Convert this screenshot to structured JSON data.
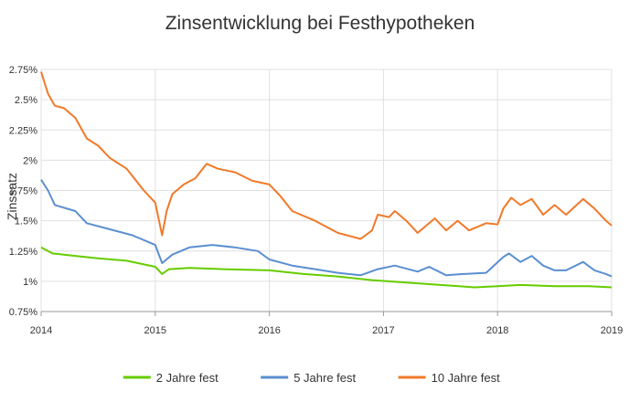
{
  "chart_data": {
    "type": "line",
    "title": "Zinsentwicklung bei Festhypotheken",
    "xlabel": "",
    "ylabel": "Zinssatz",
    "xlim": [
      2014,
      2019
    ],
    "ylim": [
      0.75,
      2.75
    ],
    "x_ticks": [
      "2014",
      "2015",
      "2016",
      "2017",
      "2018",
      "2019"
    ],
    "y_ticks": [
      "0.75%",
      "1%",
      "1.25%",
      "1.5%",
      "1.75%",
      "2%",
      "2.25%",
      "2.5%",
      "2.75%"
    ],
    "grid": true,
    "legend_position": "bottom",
    "series": [
      {
        "name": "2 Jahre fest",
        "color": "#66cc00",
        "points": [
          [
            2014.0,
            1.28
          ],
          [
            2014.1,
            1.23
          ],
          [
            2014.3,
            1.21
          ],
          [
            2014.5,
            1.19
          ],
          [
            2014.75,
            1.17
          ],
          [
            2015.0,
            1.12
          ],
          [
            2015.06,
            1.06
          ],
          [
            2015.12,
            1.1
          ],
          [
            2015.3,
            1.11
          ],
          [
            2015.6,
            1.1
          ],
          [
            2016.0,
            1.09
          ],
          [
            2016.3,
            1.06
          ],
          [
            2016.6,
            1.04
          ],
          [
            2016.9,
            1.01
          ],
          [
            2017.2,
            0.99
          ],
          [
            2017.5,
            0.97
          ],
          [
            2017.8,
            0.95
          ],
          [
            2018.0,
            0.96
          ],
          [
            2018.2,
            0.97
          ],
          [
            2018.5,
            0.96
          ],
          [
            2018.8,
            0.96
          ],
          [
            2019.0,
            0.95
          ]
        ]
      },
      {
        "name": "5 Jahre fest",
        "color": "#5b8fd0",
        "points": [
          [
            2014.0,
            1.84
          ],
          [
            2014.06,
            1.75
          ],
          [
            2014.12,
            1.63
          ],
          [
            2014.3,
            1.58
          ],
          [
            2014.4,
            1.48
          ],
          [
            2014.6,
            1.43
          ],
          [
            2014.8,
            1.38
          ],
          [
            2015.0,
            1.3
          ],
          [
            2015.06,
            1.15
          ],
          [
            2015.15,
            1.22
          ],
          [
            2015.3,
            1.28
          ],
          [
            2015.5,
            1.3
          ],
          [
            2015.7,
            1.28
          ],
          [
            2015.9,
            1.25
          ],
          [
            2016.0,
            1.18
          ],
          [
            2016.2,
            1.13
          ],
          [
            2016.4,
            1.1
          ],
          [
            2016.6,
            1.07
          ],
          [
            2016.8,
            1.05
          ],
          [
            2016.95,
            1.1
          ],
          [
            2017.1,
            1.13
          ],
          [
            2017.3,
            1.08
          ],
          [
            2017.4,
            1.12
          ],
          [
            2017.55,
            1.05
          ],
          [
            2017.7,
            1.06
          ],
          [
            2017.9,
            1.07
          ],
          [
            2018.05,
            1.2
          ],
          [
            2018.1,
            1.23
          ],
          [
            2018.2,
            1.16
          ],
          [
            2018.3,
            1.21
          ],
          [
            2018.4,
            1.13
          ],
          [
            2018.5,
            1.09
          ],
          [
            2018.6,
            1.09
          ],
          [
            2018.75,
            1.16
          ],
          [
            2018.85,
            1.09
          ],
          [
            2018.95,
            1.06
          ],
          [
            2019.0,
            1.04
          ]
        ]
      },
      {
        "name": "10 Jahre fest",
        "color": "#f07a2a",
        "points": [
          [
            2014.0,
            2.73
          ],
          [
            2014.06,
            2.55
          ],
          [
            2014.12,
            2.45
          ],
          [
            2014.2,
            2.43
          ],
          [
            2014.3,
            2.35
          ],
          [
            2014.4,
            2.18
          ],
          [
            2014.5,
            2.12
          ],
          [
            2014.6,
            2.02
          ],
          [
            2014.75,
            1.93
          ],
          [
            2014.9,
            1.75
          ],
          [
            2015.0,
            1.65
          ],
          [
            2015.06,
            1.38
          ],
          [
            2015.1,
            1.58
          ],
          [
            2015.15,
            1.72
          ],
          [
            2015.25,
            1.8
          ],
          [
            2015.35,
            1.85
          ],
          [
            2015.45,
            1.97
          ],
          [
            2015.55,
            1.93
          ],
          [
            2015.7,
            1.9
          ],
          [
            2015.85,
            1.83
          ],
          [
            2016.0,
            1.8
          ],
          [
            2016.1,
            1.7
          ],
          [
            2016.2,
            1.58
          ],
          [
            2016.4,
            1.5
          ],
          [
            2016.6,
            1.4
          ],
          [
            2016.8,
            1.35
          ],
          [
            2016.9,
            1.42
          ],
          [
            2016.95,
            1.55
          ],
          [
            2017.05,
            1.53
          ],
          [
            2017.1,
            1.58
          ],
          [
            2017.2,
            1.5
          ],
          [
            2017.3,
            1.4
          ],
          [
            2017.45,
            1.52
          ],
          [
            2017.55,
            1.42
          ],
          [
            2017.65,
            1.5
          ],
          [
            2017.75,
            1.42
          ],
          [
            2017.9,
            1.48
          ],
          [
            2018.0,
            1.47
          ],
          [
            2018.05,
            1.6
          ],
          [
            2018.12,
            1.69
          ],
          [
            2018.2,
            1.63
          ],
          [
            2018.3,
            1.68
          ],
          [
            2018.4,
            1.55
          ],
          [
            2018.5,
            1.63
          ],
          [
            2018.6,
            1.55
          ],
          [
            2018.75,
            1.68
          ],
          [
            2018.85,
            1.6
          ],
          [
            2018.95,
            1.5
          ],
          [
            2019.0,
            1.46
          ]
        ]
      }
    ]
  }
}
